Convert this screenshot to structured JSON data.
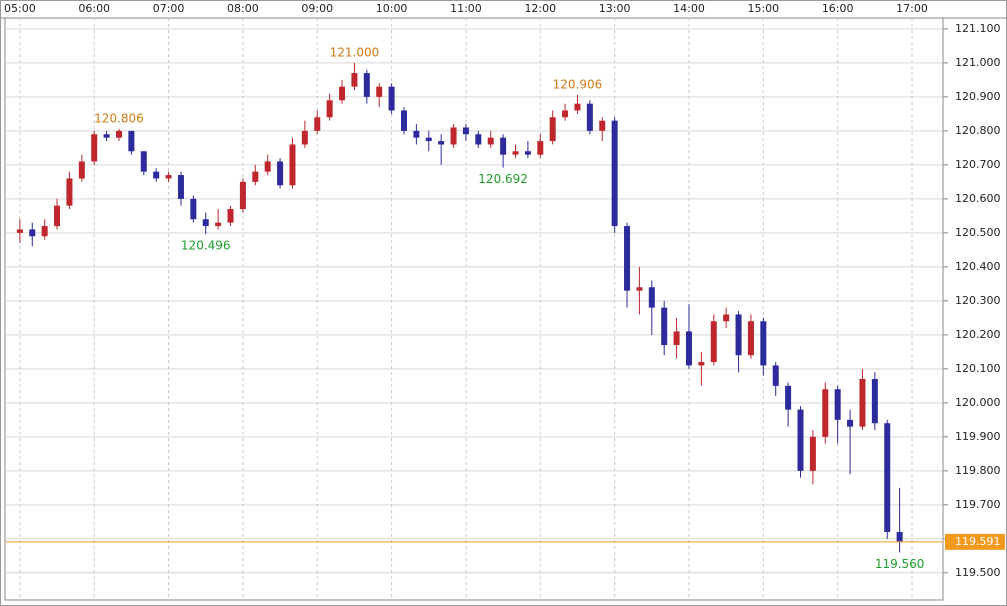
{
  "chart_data": {
    "type": "candlestick",
    "x": [
      300,
      310,
      320,
      330,
      340,
      350,
      360,
      370,
      380,
      390,
      400,
      410,
      420,
      430,
      440,
      450,
      460,
      470,
      480,
      490,
      500,
      510,
      520,
      530,
      540,
      550,
      560,
      570,
      580,
      590,
      600,
      610,
      620,
      630,
      640,
      650,
      660,
      670,
      680,
      690,
      700,
      710,
      720,
      730,
      740,
      750,
      760,
      770,
      780,
      790,
      800,
      810,
      820,
      830,
      840,
      850,
      860,
      870,
      880,
      890,
      900,
      910,
      920,
      930,
      940,
      950,
      960,
      970,
      980,
      990,
      1000,
      1010
    ],
    "open": [
      120.5,
      120.51,
      120.49,
      120.52,
      120.58,
      120.66,
      120.71,
      120.79,
      120.78,
      120.8,
      120.74,
      120.68,
      120.66,
      120.67,
      120.6,
      120.54,
      120.52,
      120.53,
      120.57,
      120.65,
      120.68,
      120.71,
      120.64,
      120.76,
      120.8,
      120.84,
      120.89,
      120.93,
      120.97,
      120.9,
      120.93,
      120.86,
      120.8,
      120.78,
      120.77,
      120.76,
      120.81,
      120.79,
      120.76,
      120.78,
      120.73,
      120.74,
      120.73,
      120.77,
      120.84,
      120.86,
      120.88,
      120.8,
      120.83,
      120.52,
      120.33,
      120.34,
      120.28,
      120.17,
      120.21,
      120.11,
      120.12,
      120.24,
      120.26,
      120.14,
      120.24,
      120.11,
      120.05,
      119.98,
      119.8,
      119.9,
      120.04,
      119.95,
      119.93,
      120.07,
      119.94,
      119.62
    ],
    "high": [
      120.54,
      120.53,
      120.54,
      120.6,
      120.68,
      120.73,
      120.8,
      120.8,
      120.806,
      120.8,
      120.74,
      120.69,
      120.68,
      120.68,
      120.61,
      120.56,
      120.57,
      120.58,
      120.66,
      120.7,
      120.73,
      120.72,
      120.78,
      120.83,
      120.86,
      120.91,
      120.95,
      121.0,
      120.98,
      120.94,
      120.94,
      120.87,
      120.82,
      120.8,
      120.79,
      120.82,
      120.82,
      120.8,
      120.8,
      120.79,
      120.76,
      120.77,
      120.79,
      120.86,
      120.88,
      120.906,
      120.89,
      120.84,
      120.84,
      120.53,
      120.4,
      120.36,
      120.3,
      120.25,
      120.29,
      120.15,
      120.26,
      120.28,
      120.27,
      120.26,
      120.25,
      120.12,
      120.06,
      119.99,
      119.92,
      120.06,
      120.05,
      119.98,
      120.1,
      120.09,
      119.95,
      119.75
    ],
    "low": [
      120.47,
      120.46,
      120.48,
      120.51,
      120.57,
      120.65,
      120.7,
      120.77,
      120.77,
      120.73,
      120.67,
      120.65,
      120.65,
      120.58,
      120.53,
      120.496,
      120.51,
      120.52,
      120.56,
      120.64,
      120.67,
      120.63,
      120.63,
      120.75,
      120.79,
      120.83,
      120.88,
      120.92,
      120.88,
      120.87,
      120.85,
      120.79,
      120.76,
      120.74,
      120.7,
      120.75,
      120.77,
      120.75,
      120.75,
      120.692,
      120.72,
      120.72,
      120.72,
      120.76,
      120.83,
      120.85,
      120.79,
      120.77,
      120.5,
      120.28,
      120.26,
      120.2,
      120.14,
      120.13,
      120.1,
      120.05,
      120.11,
      120.22,
      120.09,
      120.13,
      120.08,
      120.02,
      119.93,
      119.78,
      119.76,
      119.88,
      119.88,
      119.79,
      119.92,
      119.92,
      119.6,
      119.56
    ],
    "close": [
      120.51,
      120.49,
      120.52,
      120.58,
      120.66,
      120.71,
      120.79,
      120.78,
      120.8,
      120.74,
      120.68,
      120.66,
      120.67,
      120.6,
      120.54,
      120.52,
      120.53,
      120.57,
      120.65,
      120.68,
      120.71,
      120.64,
      120.76,
      120.8,
      120.84,
      120.89,
      120.93,
      120.97,
      120.9,
      120.93,
      120.86,
      120.8,
      120.78,
      120.77,
      120.76,
      120.81,
      120.79,
      120.76,
      120.78,
      120.73,
      120.74,
      120.73,
      120.77,
      120.84,
      120.86,
      120.88,
      120.8,
      120.83,
      120.52,
      120.33,
      120.34,
      120.28,
      120.17,
      120.21,
      120.11,
      120.12,
      120.24,
      120.26,
      120.14,
      120.24,
      120.11,
      120.05,
      119.98,
      119.8,
      119.9,
      120.04,
      119.95,
      119.93,
      120.07,
      119.94,
      119.62,
      119.591
    ],
    "up_color": "#c0272d",
    "down_color": "#2b2b9c",
    "xlim": [
      288,
      1045
    ],
    "xticks": [
      {
        "value": 300,
        "label": "05:00"
      },
      {
        "value": 360,
        "label": "06:00"
      },
      {
        "value": 420,
        "label": "07:00"
      },
      {
        "value": 480,
        "label": "08:00"
      },
      {
        "value": 540,
        "label": "09:00"
      },
      {
        "value": 600,
        "label": "10:00"
      },
      {
        "value": 660,
        "label": "11:00"
      },
      {
        "value": 720,
        "label": "12:00"
      },
      {
        "value": 780,
        "label": "13:00"
      },
      {
        "value": 840,
        "label": "14:00"
      },
      {
        "value": 900,
        "label": "15:00"
      },
      {
        "value": 960,
        "label": "16:00"
      },
      {
        "value": 1020,
        "label": "17:00"
      }
    ],
    "ylim": [
      119.42,
      121.132
    ],
    "yticks": [
      {
        "value": 119.5,
        "label": "119.500"
      },
      {
        "value": 119.6,
        "label": "119.600"
      },
      {
        "value": 119.7,
        "label": "119.700"
      },
      {
        "value": 119.8,
        "label": "119.800"
      },
      {
        "value": 119.9,
        "label": "119.900"
      },
      {
        "value": 120,
        "label": "120.000"
      },
      {
        "value": 120.1,
        "label": "120.100"
      },
      {
        "value": 120.2,
        "label": "120.200"
      },
      {
        "value": 120.3,
        "label": "120.300"
      },
      {
        "value": 120.4,
        "label": "120.400"
      },
      {
        "value": 120.5,
        "label": "120.500"
      },
      {
        "value": 120.6,
        "label": "120.600"
      },
      {
        "value": 120.7,
        "label": "120.700"
      },
      {
        "value": 120.8,
        "label": "120.800"
      },
      {
        "value": 120.9,
        "label": "120.900"
      },
      {
        "value": 121,
        "label": "121.000"
      },
      {
        "value": 121.1,
        "label": "121.100"
      }
    ],
    "grid": true,
    "current_price": {
      "value": 119.591,
      "label": "119.591",
      "color": "#f39a1e"
    },
    "annotations": [
      {
        "x": 380,
        "value": 120.806,
        "label": "120.806",
        "position": "above",
        "color": "#d07a12"
      },
      {
        "x": 570,
        "value": 121.0,
        "label": "121.000",
        "position": "above",
        "color": "#d07a12"
      },
      {
        "x": 750,
        "value": 120.906,
        "label": "120.906",
        "position": "above",
        "color": "#d07a12"
      },
      {
        "x": 450,
        "value": 120.496,
        "label": "120.496",
        "position": "below",
        "color": "#1e9e2a"
      },
      {
        "x": 690,
        "value": 120.692,
        "label": "120.692",
        "position": "below",
        "color": "#1e9e2a"
      },
      {
        "x": 1010,
        "value": 119.56,
        "label": "119.560",
        "position": "below",
        "color": "#1e9e2a"
      }
    ]
  }
}
